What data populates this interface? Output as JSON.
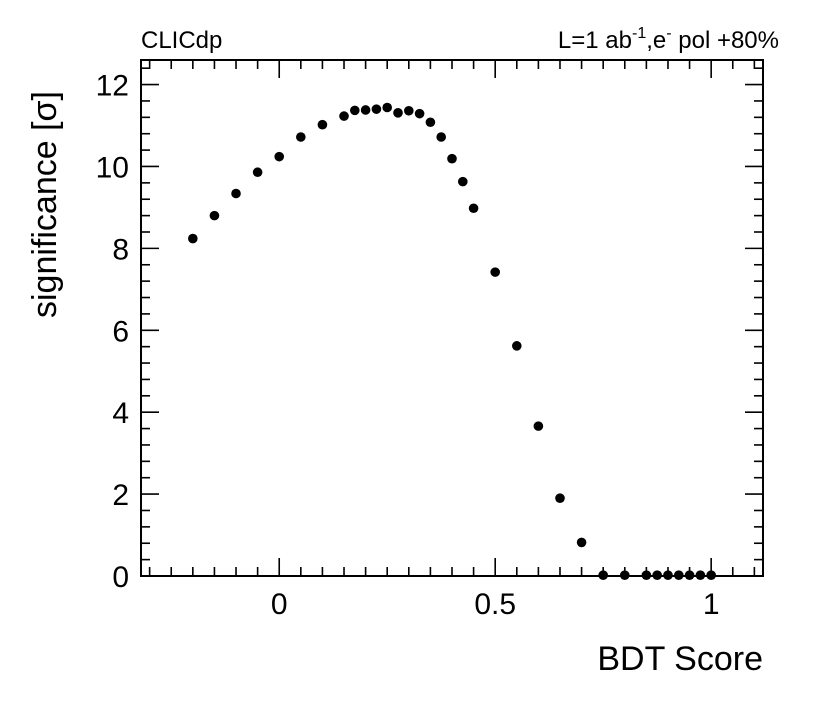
{
  "header": {
    "experiment": "CLICdp",
    "luminosity_prefix": "L=1 ab",
    "luminosity_exp": "-1",
    "beam_sep": ",e",
    "beam_exp": "-",
    "polarization": " pol +80%"
  },
  "chart_data": {
    "type": "scatter",
    "title": "",
    "xlabel": "BDT Score",
    "ylabel": "significance [σ]",
    "xlim": [
      -0.32,
      1.12
    ],
    "ylim": [
      0,
      12.6
    ],
    "x_ticks": [
      0,
      0.5,
      1
    ],
    "x_tick_labels": [
      "0",
      "0.5",
      "1"
    ],
    "y_ticks": [
      0,
      2,
      4,
      6,
      8,
      10,
      12
    ],
    "y_tick_labels": [
      "0",
      "2",
      "4",
      "6",
      "8",
      "10",
      "12"
    ],
    "grid": false,
    "marker_color": "#000000",
    "series": [
      {
        "x": [
          -0.2,
          -0.15,
          -0.1,
          -0.05,
          0.0,
          0.05,
          0.1,
          0.15,
          0.175,
          0.2,
          0.225,
          0.25,
          0.275,
          0.3,
          0.325,
          0.35,
          0.375,
          0.4,
          0.425,
          0.45,
          0.5,
          0.55,
          0.6,
          0.65,
          0.7,
          0.75,
          0.8,
          0.85,
          0.875,
          0.9,
          0.925,
          0.95,
          0.975,
          1.0
        ],
        "y": [
          8.24,
          8.8,
          9.34,
          9.86,
          10.24,
          10.72,
          11.02,
          11.23,
          11.37,
          11.38,
          11.4,
          11.44,
          11.31,
          11.36,
          11.29,
          11.08,
          10.72,
          10.19,
          9.63,
          8.98,
          7.42,
          5.62,
          3.66,
          1.9,
          0.82,
          0.02,
          0.02,
          0.02,
          0.02,
          0.02,
          0.02,
          0.02,
          0.02,
          0.02
        ]
      }
    ]
  }
}
